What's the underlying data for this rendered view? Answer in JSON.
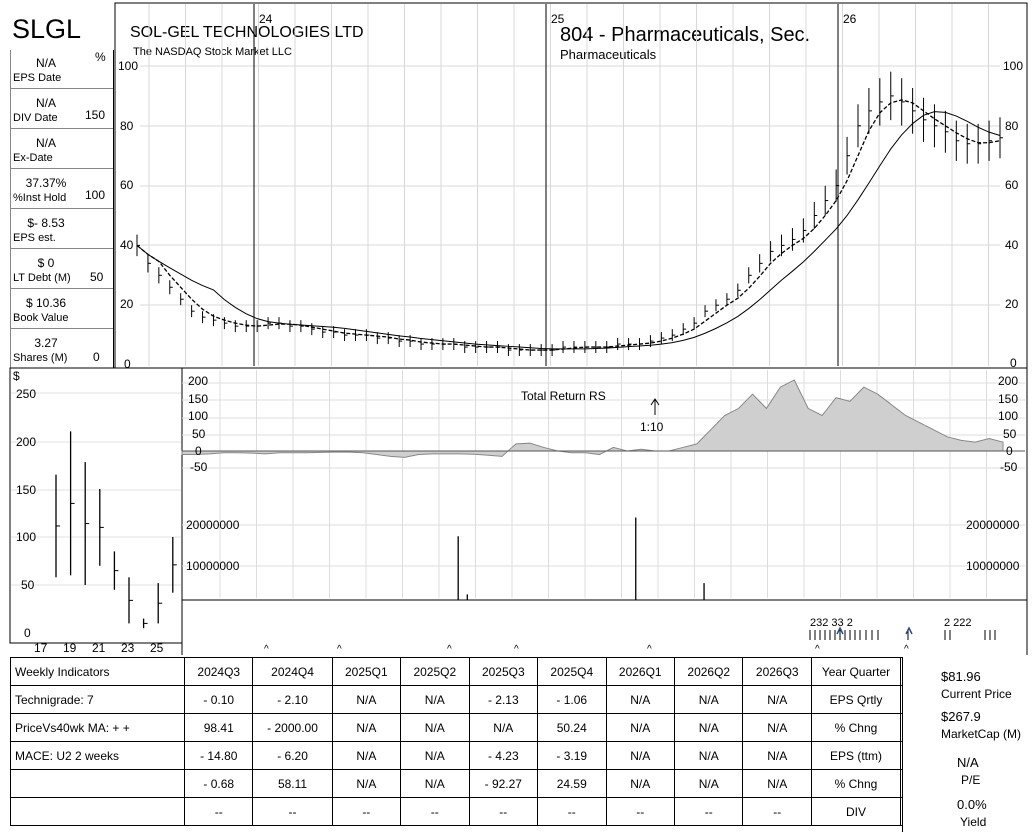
{
  "header": {
    "ticker": "SLGL",
    "company": "SOL-GEL TECHNOLOGIES LTD",
    "exchange": "The NASDAQ Stock Market LLC",
    "industry": "804 - Pharmaceuticals, Sec.",
    "subindustry": "Pharmaceuticals"
  },
  "left_stats": [
    {
      "value": "N/A",
      "label": "EPS Date"
    },
    {
      "value": "N/A",
      "label": "DIV Date"
    },
    {
      "value": "N/A",
      "label": "Ex-Date"
    },
    {
      "value": "37.37%",
      "label": "%Inst Hold"
    },
    {
      "value": "$- 8.53",
      "label": "EPS est."
    },
    {
      "value": "$ 0",
      "label": "LT Debt (M)"
    },
    {
      "value": "$ 10.36",
      "label": "Book Value"
    },
    {
      "value": "3.27",
      "label": "Shares (M)"
    }
  ],
  "axes": {
    "pct_unit": "%",
    "pct_ticks": [
      "150",
      "100",
      "50",
      "0"
    ],
    "price_ticks": [
      "100",
      "80",
      "60",
      "40",
      "20",
      "0"
    ],
    "year_labels": [
      "24",
      "25",
      "26"
    ],
    "rs_ticks": [
      "200",
      "150",
      "100",
      "50",
      "0",
      "-50"
    ],
    "vol_ticks": [
      "20000000",
      "10000000"
    ],
    "inset_unit": "$",
    "inset_ticks": [
      "250",
      "200",
      "150",
      "100",
      "50",
      "0"
    ],
    "inset_x_labels": [
      "17",
      "19",
      "21",
      "23",
      "25"
    ]
  },
  "annotations": {
    "rs_title": "Total Return RS",
    "split": "1:10",
    "event_marks": "232 33   2",
    "event_marks_right": "2     222"
  },
  "chart_data": [
    {
      "type": "line",
      "title": "Weekly price (log-adjusted) with moving averages",
      "ylim": [
        0,
        100
      ],
      "series": [
        {
          "name": "price",
          "values": [
            40,
            34,
            30,
            26,
            22,
            18,
            16,
            15,
            14,
            13,
            13,
            13,
            14,
            14,
            13,
            13,
            12,
            11,
            11,
            10,
            10,
            10,
            9,
            9,
            8,
            8,
            7,
            7,
            7,
            7,
            6,
            6,
            6,
            6,
            5,
            5,
            5,
            5,
            5,
            6,
            6,
            6,
            6,
            6,
            7,
            7,
            7,
            8,
            9,
            10,
            12,
            14,
            18,
            20,
            22,
            25,
            30,
            34,
            38,
            40,
            42,
            45,
            50,
            55,
            60,
            70,
            80,
            85,
            88,
            90,
            88,
            85,
            82,
            80,
            78,
            75,
            74,
            74,
            75,
            76
          ]
        }
      ]
    },
    {
      "type": "area",
      "title": "Total Return RS",
      "ylim": [
        -50,
        200
      ],
      "values": [
        -10,
        -10,
        -8,
        -5,
        -5,
        -6,
        -8,
        -5,
        -5,
        -5,
        -4,
        -3,
        -3,
        -5,
        -10,
        -15,
        -18,
        -10,
        -8,
        -8,
        -8,
        -9,
        -12,
        -15,
        20,
        22,
        10,
        0,
        -5,
        -5,
        -10,
        10,
        0,
        5,
        0,
        0,
        10,
        20,
        60,
        100,
        120,
        160,
        120,
        180,
        200,
        120,
        100,
        150,
        140,
        180,
        160,
        130,
        100,
        80,
        60,
        40,
        30,
        25,
        35,
        25
      ]
    },
    {
      "type": "bar",
      "title": "Volume",
      "ylim": [
        0,
        25000000
      ],
      "values": [
        0,
        0,
        0,
        0,
        0,
        0,
        0,
        0,
        0,
        0,
        0,
        0,
        0,
        0,
        0,
        0,
        0,
        0,
        0,
        0,
        0,
        0,
        0,
        0,
        0,
        0,
        0,
        0,
        0,
        0,
        0,
        0,
        0,
        0,
        0,
        0,
        0,
        0,
        0,
        0,
        0,
        0,
        0,
        0,
        0,
        0,
        0,
        0,
        0,
        0,
        0,
        0,
        0,
        0,
        0,
        0,
        0,
        0,
        0,
        0,
        17000000,
        0,
        1500000,
        0,
        0,
        0,
        0,
        0,
        0,
        0,
        0,
        0,
        0,
        0,
        0,
        0,
        0,
        0,
        0,
        0,
        0,
        0,
        0,
        0,
        0,
        0,
        0,
        0,
        0,
        0,
        0,
        0,
        0,
        0,
        0,
        0,
        0,
        0,
        0,
        22000000,
        0,
        0,
        0,
        0,
        0,
        0,
        0,
        0,
        0,
        0,
        0,
        0,
        0,
        0,
        4500000,
        0,
        0,
        0,
        0,
        0,
        0,
        0,
        0,
        0,
        0,
        0,
        0,
        0,
        0,
        0,
        0,
        0,
        0,
        0,
        0,
        0,
        0,
        0,
        0,
        0,
        0,
        0,
        0,
        0,
        0,
        0,
        0,
        0,
        0,
        0,
        0,
        0,
        0,
        0,
        0,
        0,
        0,
        0,
        0,
        0,
        0,
        0,
        0,
        0,
        0,
        0,
        0,
        0,
        0,
        0,
        0,
        0,
        0,
        0,
        0,
        0,
        0,
        0,
        0,
        0
      ]
    },
    {
      "type": "bar",
      "title": "Quarterly price ranges",
      "categories": [
        "17",
        "18",
        "19",
        "20",
        "21",
        "22",
        "23",
        "24",
        "25",
        "26"
      ],
      "ylim": [
        0,
        250
      ],
      "series": [
        {
          "name": "high",
          "values": [
            165,
            210,
            178,
            150,
            85,
            58,
            15,
            52,
            100,
            0
          ]
        },
        {
          "name": "low",
          "values": [
            58,
            60,
            50,
            70,
            45,
            10,
            5,
            10,
            42,
            0
          ]
        }
      ]
    }
  ],
  "table": {
    "title": "Weekly Indicators",
    "quarters": [
      "2024Q3",
      "2024Q4",
      "2025Q1",
      "2025Q2",
      "2025Q3",
      "2025Q4",
      "2026Q1",
      "2026Q2",
      "2026Q3"
    ],
    "metric_col": "Year Quarter",
    "rows": [
      {
        "label": "Technigrade: 7",
        "values": [
          "- 0.10",
          "- 2.10",
          "N/A",
          "N/A",
          "- 2.13",
          "- 1.06",
          "N/A",
          "N/A",
          "N/A"
        ],
        "metric": "EPS Qrtly"
      },
      {
        "label": "PriceVs40wk MA:  + +",
        "values": [
          "98.41",
          "- 2000.00",
          "N/A",
          "N/A",
          "N/A",
          "50.24",
          "N/A",
          "N/A",
          "N/A"
        ],
        "metric": "% Chng"
      },
      {
        "label": "MACE: U2  2 weeks",
        "values": [
          "- 14.80",
          "- 6.20",
          "N/A",
          "N/A",
          "- 4.23",
          "- 3.19",
          "N/A",
          "N/A",
          "N/A"
        ],
        "metric": "EPS (ttm)"
      },
      {
        "label": "",
        "values": [
          "- 0.68",
          "58.11",
          "N/A",
          "N/A",
          "- 92.27",
          "24.59",
          "N/A",
          "N/A",
          "N/A"
        ],
        "metric": "% Chng"
      },
      {
        "label": "",
        "values": [
          "--",
          "--",
          "--",
          "--",
          "--",
          "--",
          "--",
          "--",
          "--"
        ],
        "metric": "DIV"
      }
    ]
  },
  "pricebox": {
    "price": "$81.96",
    "price_label": "Current Price",
    "mcap": "$267.9",
    "mcap_label": "MarketCap (M)",
    "pe": "N/A",
    "pe_label": "P/E",
    "yield": "0.0%",
    "yield_label": "Yield"
  }
}
